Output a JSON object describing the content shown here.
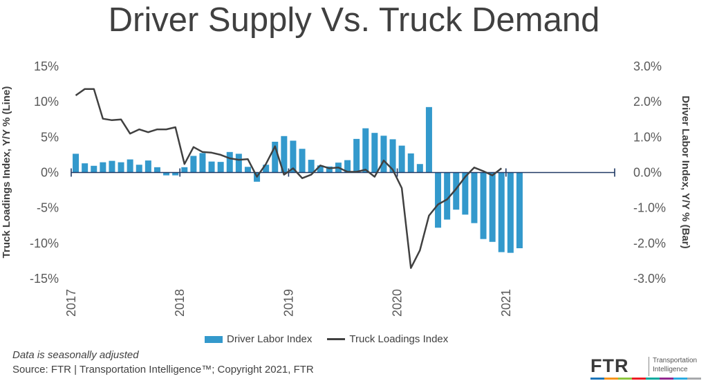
{
  "title": "Driver Supply Vs. Truck Demand",
  "note": "Data is seasonally adjusted",
  "source": "Source:  FTR | Transportation Intelligence™; Copyright 2021, FTR",
  "logo": {
    "mark": "FTR",
    "line1": "Transportation",
    "line2": "Intelligence"
  },
  "colors": {
    "bar": "#3399cc",
    "line": "#404040",
    "zero_line": "#1f3864",
    "strip": [
      "#1b75bb",
      "#f7941d",
      "#8dc63f",
      "#ed1c24",
      "#00a99d",
      "#92278f",
      "#29abe2",
      "#a7a9ac"
    ]
  },
  "chart_data": {
    "type": "bar+line",
    "title": "Driver Supply Vs. Truck Demand",
    "left_axis": {
      "label": "Truck Loadings Index, Y/Y % (Line)",
      "ylim": [
        -15,
        15
      ],
      "ticks": [
        15,
        10,
        5,
        0,
        -5,
        -10,
        -15
      ],
      "tick_labels": [
        "15%",
        "10%",
        "5%",
        "0%",
        "-5%",
        "-10%",
        "-15%"
      ]
    },
    "right_axis": {
      "label": "Driver Labor Index, Y/Y % (Bar)",
      "ylim": [
        -3,
        3
      ],
      "ticks": [
        3,
        2,
        1,
        0,
        -1,
        -2,
        -3
      ],
      "tick_labels": [
        "3.0%",
        "2.0%",
        "1.0%",
        "0.0%",
        "-1.0%",
        "-2.0%",
        "-3.0%"
      ]
    },
    "x_axis": {
      "start": "2017-01",
      "months_total": 60,
      "year_labels": [
        "2017",
        "2018",
        "2019",
        "2020",
        "2021"
      ]
    },
    "series": [
      {
        "name": "Driver Labor Index",
        "kind": "bar",
        "axis": "right",
        "values": [
          0.53,
          0.26,
          0.19,
          0.29,
          0.33,
          0.29,
          0.37,
          0.22,
          0.34,
          0.15,
          -0.08,
          -0.08,
          0.15,
          0.47,
          0.55,
          0.31,
          0.3,
          0.58,
          0.53,
          0.16,
          -0.26,
          0.22,
          0.87,
          1.03,
          0.9,
          0.67,
          0.36,
          0.2,
          0.17,
          0.28,
          0.35,
          0.95,
          1.25,
          1.12,
          1.04,
          0.94,
          0.76,
          0.54,
          0.24,
          1.85,
          -1.56,
          -1.33,
          -1.05,
          -1.19,
          -1.43,
          -1.88,
          -1.96,
          -2.25,
          -2.27,
          -2.14
        ]
      },
      {
        "name": "Truck Loadings Index",
        "kind": "line",
        "axis": "left",
        "values": [
          10.9,
          11.8,
          11.8,
          7.6,
          7.4,
          7.5,
          5.5,
          6.1,
          5.7,
          6.1,
          6.1,
          6.4,
          1.2,
          3.6,
          2.9,
          2.8,
          2.5,
          2.0,
          1.8,
          1.9,
          -0.6,
          1.2,
          3.7,
          -0.3,
          0.6,
          -0.8,
          -0.3,
          1.0,
          0.6,
          0.7,
          0.1,
          0.1,
          0.4,
          -0.6,
          1.7,
          0.4,
          -2.2,
          -13.5,
          -11.0,
          -6.1,
          -4.5,
          -3.8,
          -2.3,
          -0.6,
          0.7,
          0.2,
          -0.4,
          0.6
        ]
      }
    ],
    "legend_position": "bottom"
  }
}
